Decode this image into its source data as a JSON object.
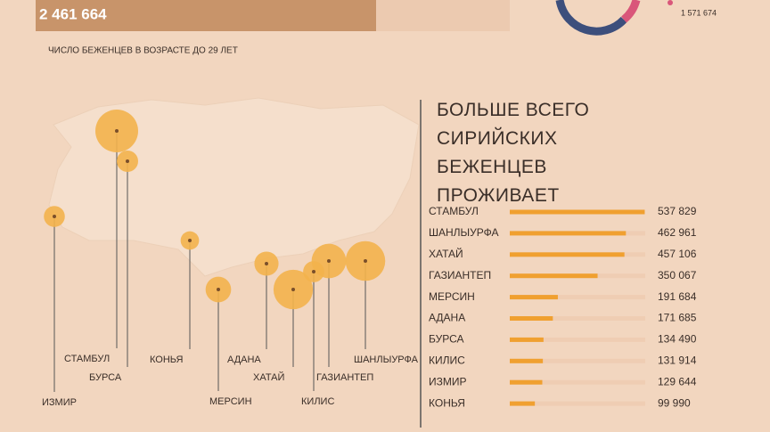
{
  "header": {
    "total": "2 461 664",
    "donut_value": "1 571 674",
    "subtitle": "ЧИСЛО БЕЖЕНЦЕВ В ВОЗРАСТЕ ДО 29 ЛЕТ"
  },
  "chart_data": {
    "type": "bar",
    "orientation": "horizontal",
    "title": "БОЛЬШЕ ВСЕГО СИРИЙСКИХ БЕЖЕНЦЕВ ПРОЖИВАЕТ",
    "categories": [
      "СТАМБУЛ",
      "ШАНЛЫУРФА",
      "ХАТАЙ",
      "ГАЗИАНТЕП",
      "МЕРСИН",
      "АДАНА",
      "БУРСА",
      "КИЛИС",
      "ИЗМИР",
      "КОНЬЯ"
    ],
    "values": [
      537829,
      462961,
      457106,
      350067,
      191684,
      171685,
      134490,
      131914,
      129644,
      99990
    ],
    "value_labels": [
      "537 829",
      "462 961",
      "457 106",
      "350 067",
      "191 684",
      "171 685",
      "134 490",
      "131 914",
      "129 644",
      "99 990"
    ],
    "color": "#f0a030",
    "xlim": [
      0,
      540000
    ]
  }
}
